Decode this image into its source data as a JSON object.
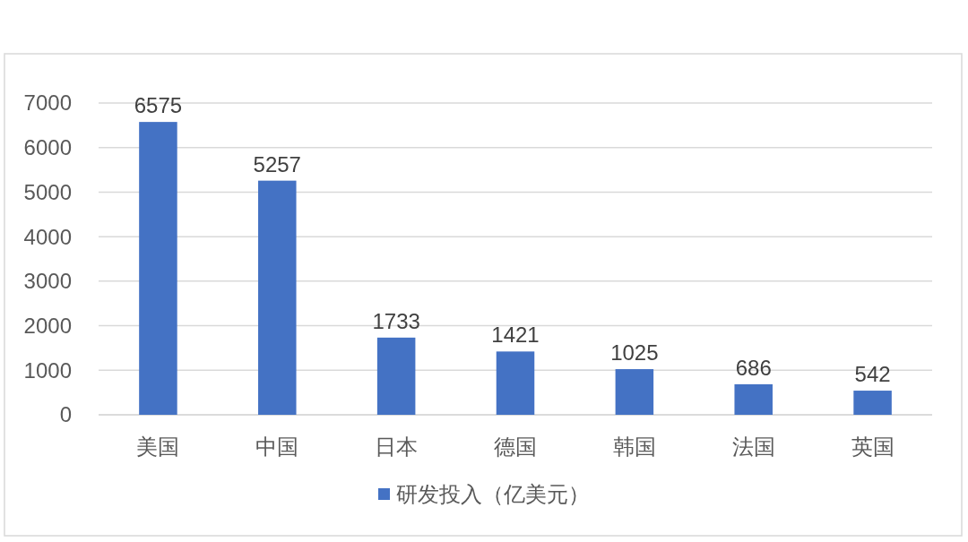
{
  "chart_data": {
    "type": "bar",
    "categories": [
      "美国",
      "中国",
      "日本",
      "德国",
      "韩国",
      "法国",
      "英国"
    ],
    "series": [
      {
        "name": "研发投入（亿美元）",
        "color": "#4472c4",
        "values": [
          6575,
          5257,
          1733,
          1421,
          1025,
          686,
          542
        ]
      }
    ],
    "ylim": [
      0,
      7000
    ],
    "yticks": [
      0,
      1000,
      2000,
      3000,
      4000,
      5000,
      6000,
      7000
    ],
    "grid": "y",
    "legend": "bottom",
    "data_labels": true
  }
}
